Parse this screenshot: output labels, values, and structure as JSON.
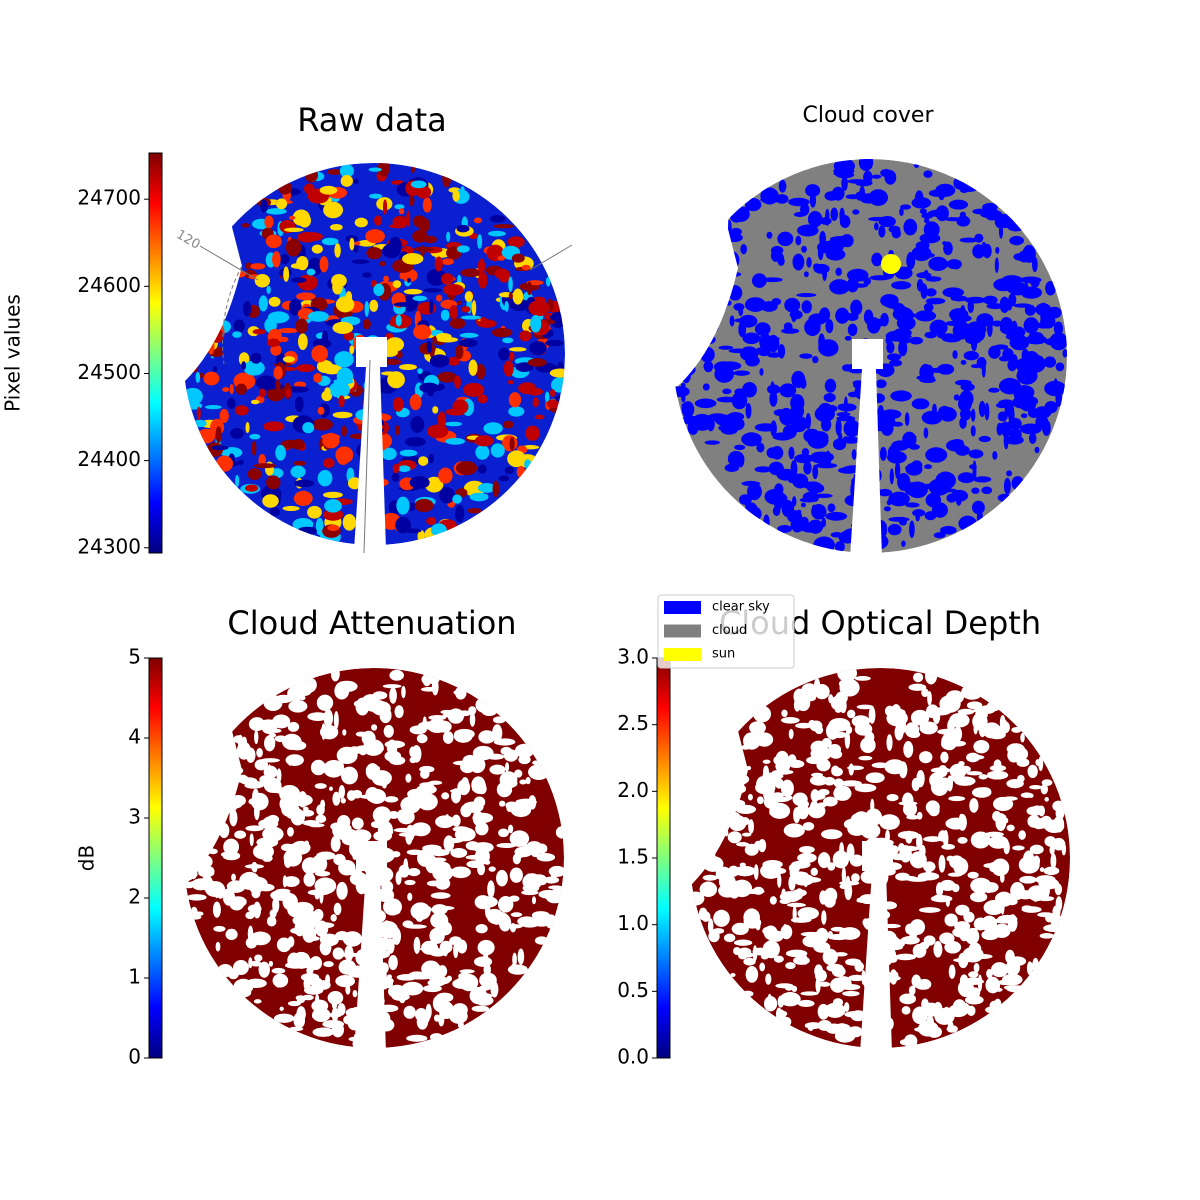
{
  "chart_data": [
    {
      "type": "image",
      "title": "Raw data",
      "annotations": [
        "120"
      ],
      "colorbar": {
        "label": "Pixel values",
        "cmap": "jet",
        "lim": [
          24294,
          24753
        ],
        "ticks": [
          24300,
          24400,
          24500,
          24600,
          24700
        ]
      }
    },
    {
      "type": "image",
      "title": "Cloud cover",
      "series": [
        {
          "name": "clear sky",
          "color": "#0000ff"
        },
        {
          "name": "cloud",
          "color": "#808080"
        },
        {
          "name": "sun",
          "color": "#ffff00"
        }
      ]
    },
    {
      "type": "image",
      "title": "Cloud Attenuation",
      "colorbar": {
        "label": "dB",
        "cmap": "jet",
        "lim": [
          0,
          5
        ],
        "ticks": [
          0,
          1,
          2,
          3,
          4,
          5
        ]
      }
    },
    {
      "type": "image",
      "title": "Cloud Optical Depth",
      "colorbar": {
        "cmap": "jet",
        "lim": [
          0,
          3
        ],
        "ticks": [
          {
            "value": 0,
            "label": "0.0"
          },
          {
            "value": 0.5,
            "label": "0.5"
          },
          {
            "value": 1,
            "label": "1.0"
          },
          {
            "value": 1.5,
            "label": "1.5"
          },
          {
            "value": 2,
            "label": "2.0"
          },
          {
            "value": 2.5,
            "label": "2.5"
          },
          {
            "value": 3,
            "label": "3.0"
          }
        ]
      }
    }
  ]
}
